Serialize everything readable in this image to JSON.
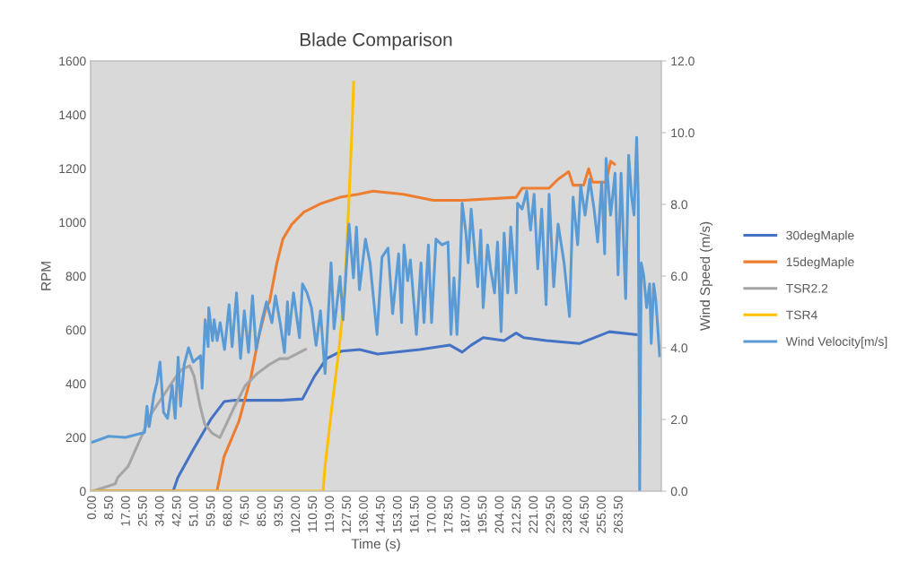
{
  "chart_data": {
    "type": "line",
    "title": "Blade Comparison",
    "xlabel": "Time (s)",
    "ylabel": "RPM",
    "y2label": "Wind Speed (m/s)",
    "xlim": [
      -1,
      284.5
    ],
    "ylim": [
      0,
      1600
    ],
    "yticks": [
      0,
      200,
      400,
      600,
      800,
      1000,
      1200,
      1400,
      1600
    ],
    "y2lim": [
      0,
      12
    ],
    "y2ticks": [
      {
        "value": 0,
        "label": "0.0"
      },
      {
        "value": 2,
        "label": "2.0"
      },
      {
        "value": 4,
        "label": "4.0"
      },
      {
        "value": 6,
        "label": "6.0"
      },
      {
        "value": 8,
        "label": "8.0"
      },
      {
        "value": 10,
        "label": "10.0"
      },
      {
        "value": 12,
        "label": "12.0"
      }
    ],
    "xticks": [
      {
        "value": 0,
        "label": "0.00"
      },
      {
        "value": 8.5,
        "label": "8.50"
      },
      {
        "value": 17,
        "label": "17.00"
      },
      {
        "value": 25.5,
        "label": "25.50"
      },
      {
        "value": 34,
        "label": "34.00"
      },
      {
        "value": 42.5,
        "label": "42.50"
      },
      {
        "value": 51,
        "label": "51.00"
      },
      {
        "value": 59.5,
        "label": "59.50"
      },
      {
        "value": 68,
        "label": "68.00"
      },
      {
        "value": 76.5,
        "label": "76.50"
      },
      {
        "value": 85,
        "label": "85.00"
      },
      {
        "value": 93.5,
        "label": "93.50"
      },
      {
        "value": 102,
        "label": "102.00"
      },
      {
        "value": 110.5,
        "label": "110.50"
      },
      {
        "value": 119,
        "label": "119.00"
      },
      {
        "value": 127.5,
        "label": "127.50"
      },
      {
        "value": 136,
        "label": "136.00"
      },
      {
        "value": 144.5,
        "label": "144.50"
      },
      {
        "value": 153,
        "label": "153.00"
      },
      {
        "value": 161.5,
        "label": "161.50"
      },
      {
        "value": 170,
        "label": "170.00"
      },
      {
        "value": 178.5,
        "label": "178.50"
      },
      {
        "value": 187,
        "label": "187.00"
      },
      {
        "value": 195.5,
        "label": "195.50"
      },
      {
        "value": 204,
        "label": "204.00"
      },
      {
        "value": 212.5,
        "label": "212.50"
      },
      {
        "value": 221,
        "label": "221.00"
      },
      {
        "value": 229.5,
        "label": "229.50"
      },
      {
        "value": 238,
        "label": "238.00"
      },
      {
        "value": 246.5,
        "label": "246.50"
      },
      {
        "value": 255,
        "label": "255.00"
      },
      {
        "value": 263.5,
        "label": "263.50"
      }
    ],
    "grid": false,
    "legend": "right",
    "marker": "none",
    "line_style": "solid",
    "series": [
      {
        "name": "30degMaple",
        "color": "#4472c4",
        "x": [
          0,
          40.3,
          42.6,
          50,
          56,
          59,
          65.8,
          71.1,
          94.5,
          105,
          111,
          117,
          124.6,
          133.6,
          142.6,
          163.7,
          178.8,
          184.9,
          189.4,
          195.4,
          205.9,
          211.9,
          215.7,
          227,
          243.5,
          258.6,
          272
        ],
        "values": [
          0,
          0,
          50,
          150,
          227,
          266,
          333,
          338,
          338,
          343,
          427,
          493,
          521,
          527,
          510,
          527,
          543,
          517,
          543,
          571,
          560,
          588,
          571,
          560,
          549,
          593,
          582
        ]
      },
      {
        "name": "15degMaple",
        "color": "#ed7d31",
        "x": [
          0,
          62.2,
          65.7,
          73.2,
          79.3,
          83,
          86.8,
          88.5,
          92.2,
          95.2,
          99.7,
          105.7,
          114.7,
          123.8,
          132.8,
          140.3,
          155.4,
          170.4,
          185.5,
          211.9,
          214.9,
          228.4,
          232.9,
          238.2,
          240.4,
          245.7,
          248.2,
          250.2,
          256.9,
          259.2,
          261.1
        ],
        "values": [
          0,
          0,
          127,
          260,
          427,
          571,
          683,
          704,
          849,
          938,
          993,
          1038,
          1071,
          1093,
          1104,
          1116,
          1104,
          1082,
          1082,
          1093,
          1127,
          1127,
          1160,
          1188,
          1138,
          1138,
          1199,
          1149,
          1149,
          1227,
          1216
        ]
      },
      {
        "name": "TSR2.2",
        "color": "#a5a5a5",
        "x": [
          0,
          11.3,
          12.5,
          17.8,
          23.8,
          29.8,
          35.8,
          41.8,
          44.8,
          48.6,
          50.8,
          53.8,
          56.1,
          59.8,
          63.6,
          65.8,
          70.3,
          76.4,
          82.4,
          88.4,
          93.6,
          97.5,
          106.5
        ],
        "values": [
          0,
          27,
          50,
          93,
          193,
          293,
          360,
          427,
          454,
          466,
          427,
          316,
          249,
          216,
          199,
          232,
          304,
          393,
          438,
          471,
          493,
          493,
          527
        ]
      },
      {
        "name": "TSR4",
        "color": "#ffc000",
        "x": [
          0,
          115.3,
          116.3,
          120.1,
          123.1,
          126.1,
          128.3,
          129.8,
          130.6
        ],
        "values": [
          0,
          0,
          93,
          338,
          516,
          738,
          1093,
          1349,
          1521
        ]
      },
      {
        "name": "Wind Velocity[m/s]",
        "color": "#5b9bd5",
        "axis": "y2",
        "x": [
          0,
          8,
          16.5,
          26,
          27.2,
          28.3,
          30.7,
          32.2,
          33.7,
          35.5,
          37.5,
          39.8,
          41.3,
          42.8,
          44,
          45.8,
          48,
          50.3,
          54,
          54.8,
          56.3,
          57.8,
          58.1,
          60,
          60.8,
          62.3,
          63.8,
          66,
          68.3,
          69.8,
          72,
          74,
          75.9,
          78,
          80,
          81.8,
          84.8,
          87,
          89.7,
          91.5,
          93.8,
          96,
          97.5,
          98.2,
          100.5,
          103.5,
          105,
          107.3,
          109.5,
          111.8,
          114,
          116.3,
          119.3,
          120.8,
          123.8,
          125.3,
          128.3,
          130.5,
          132,
          133.5,
          136.5,
          138.8,
          142.3,
          144.8,
          147.8,
          150.1,
          153.1,
          154.6,
          155.8,
          157.6,
          159,
          162,
          164.3,
          165.8,
          168,
          169.6,
          171.8,
          174.8,
          177.8,
          179.3,
          180.8,
          182.3,
          183.8,
          184.9,
          186.8,
          187.9,
          189.4,
          190.9,
          192.7,
          194.2,
          195.4,
          197.6,
          199.1,
          201.1,
          202.6,
          204.4,
          205.9,
          207.7,
          209.2,
          211.9,
          212.6,
          214.9,
          217.2,
          219.1,
          220.9,
          222.7,
          224.7,
          226.9,
          228.4,
          230.7,
          232.9,
          235.9,
          238.6,
          240.4,
          242.7,
          244.2,
          246.4,
          248.7,
          250.9,
          252.7,
          254.7,
          256.2,
          256.9,
          259.2,
          261.4,
          262.9,
          264.4,
          266.7,
          268.2,
          269.7,
          270.9,
          272.2,
          273,
          273.7,
          274.5,
          275.7,
          277.2,
          278.7,
          279.5,
          280.7,
          281.7,
          282.5,
          283.7
        ],
        "values": [
          1.37,
          1.53,
          1.5,
          1.64,
          2.37,
          1.8,
          2.7,
          3.03,
          3.6,
          2.2,
          2.03,
          2.95,
          2.03,
          3.74,
          2.37,
          3.53,
          4.0,
          3.6,
          3.78,
          2.87,
          4.78,
          4.03,
          5.12,
          4.2,
          4.78,
          4.2,
          4.7,
          3.95,
          5.2,
          4.03,
          5.53,
          3.7,
          5.03,
          3.87,
          5.45,
          3.95,
          4.78,
          5.28,
          4.7,
          5.45,
          4.7,
          3.87,
          5.28,
          4.37,
          5.53,
          4.28,
          5.78,
          5.53,
          5.12,
          4.07,
          5.03,
          3.28,
          6.37,
          4.53,
          5.99,
          4.78,
          7.45,
          5.95,
          7.37,
          5.62,
          7.03,
          6.37,
          4.37,
          6.53,
          6.78,
          4.95,
          6.62,
          4.7,
          6.87,
          5.87,
          6.45,
          4.37,
          6.37,
          4.7,
          6.87,
          4.7,
          7.03,
          6.87,
          6.95,
          4.37,
          5.95,
          4.37,
          6.12,
          8.03,
          7.2,
          6.37,
          7.87,
          6.87,
          5.7,
          7.28,
          5.12,
          6.87,
          6.2,
          5.53,
          6.95,
          4.45,
          7.2,
          5.53,
          7.37,
          5.53,
          8.03,
          7.87,
          8.37,
          7.28,
          8.28,
          6.2,
          7.87,
          5.2,
          8.28,
          5.7,
          7.45,
          6.37,
          4.87,
          8.2,
          6.87,
          8.53,
          7.7,
          8.7,
          7.87,
          6.95,
          8.62,
          6.62,
          9.28,
          7.7,
          8.87,
          6.03,
          8.87,
          5.37,
          9.37,
          8.2,
          7.7,
          9.87,
          8.2,
          0.0,
          6.37,
          6.03,
          5.12,
          5.78,
          4.12,
          5.78,
          5.37,
          4.78,
          3.78
        ]
      }
    ]
  }
}
